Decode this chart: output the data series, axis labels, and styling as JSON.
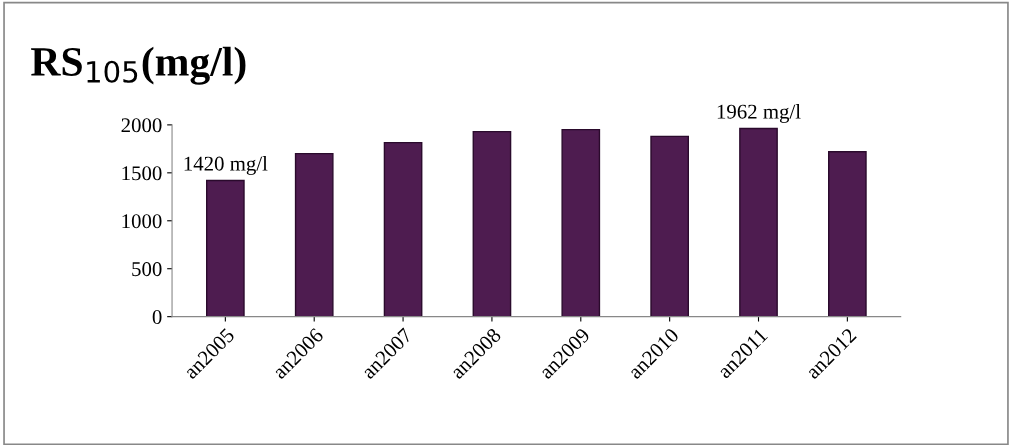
{
  "chart_data": {
    "type": "bar",
    "title": "RS$_{105}$(mg/l)",
    "categories": [
      "an2005",
      "an2006",
      "an2007",
      "an2008",
      "an2009",
      "an2010",
      "an2011",
      "an2012"
    ],
    "values": [
      1420,
      1700,
      1815,
      1930,
      1950,
      1880,
      1962,
      1720
    ],
    "value_labels": [
      "1420 mg/l",
      null,
      null,
      null,
      null,
      null,
      "1962 mg/l",
      null
    ],
    "color": "#4e1c50",
    "ylim": [
      0,
      2000
    ],
    "yticks": [
      0,
      500,
      1000,
      1500,
      2000
    ],
    "grid": false
  }
}
